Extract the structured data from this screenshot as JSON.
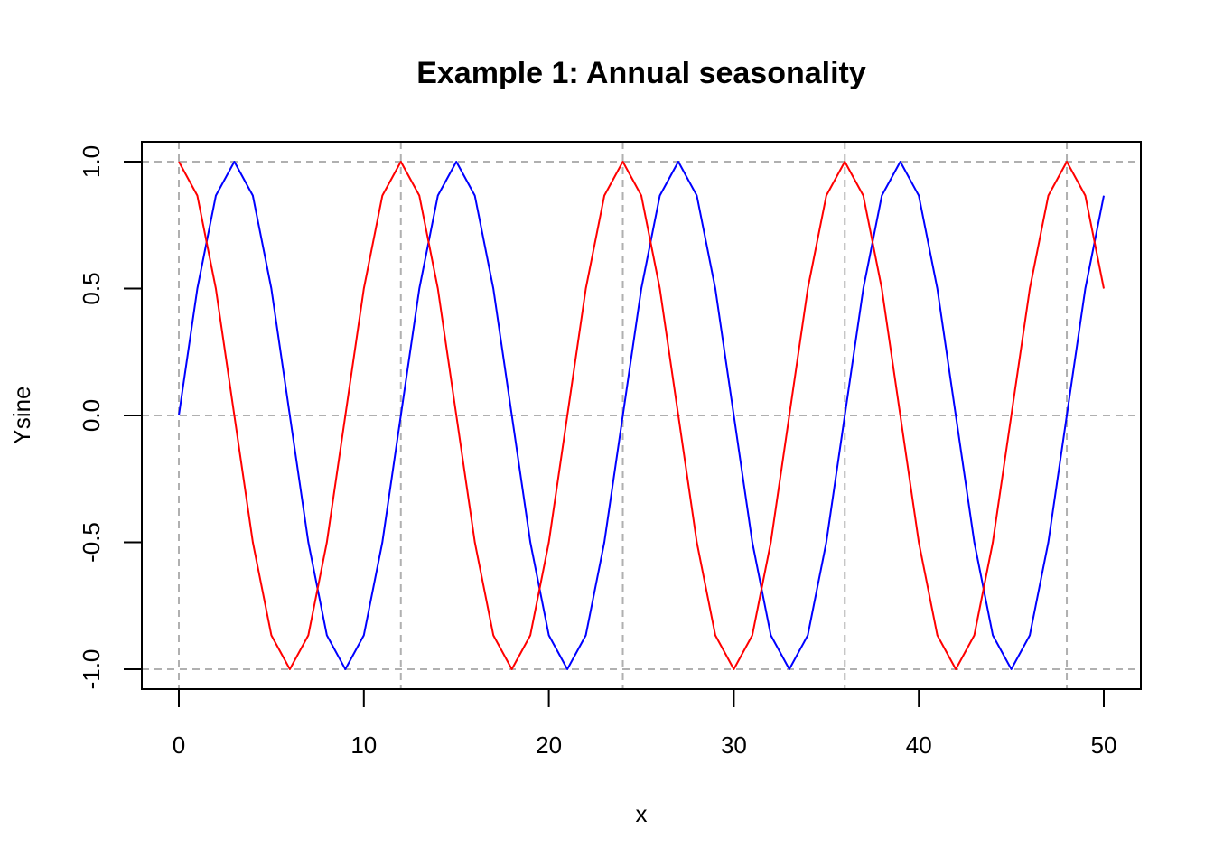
{
  "chart_data": {
    "type": "line",
    "title": "Example 1: Annual seasonality",
    "xlabel": "x",
    "ylabel": "Ysine",
    "xlim": [
      0,
      50
    ],
    "ylim": [
      -1,
      1
    ],
    "x_ticks": [
      0,
      10,
      20,
      30,
      40,
      50
    ],
    "x_tick_labels": [
      "0",
      "10",
      "20",
      "30",
      "40",
      "50"
    ],
    "y_ticks": [
      -1.0,
      -0.5,
      0.0,
      0.5,
      1.0
    ],
    "y_tick_labels": [
      "-1.0",
      "-0.5",
      "0.0",
      "0.5",
      "1.0"
    ],
    "grid": {
      "style": "dashed",
      "color": "#b0b0b0",
      "vertical_at_x": [
        0,
        12,
        24,
        36,
        48
      ],
      "horizontal_at_y": [
        -1,
        0,
        1
      ]
    },
    "x": [
      0,
      1,
      2,
      3,
      4,
      5,
      6,
      7,
      8,
      9,
      10,
      11,
      12,
      13,
      14,
      15,
      16,
      17,
      18,
      19,
      20,
      21,
      22,
      23,
      24,
      25,
      26,
      27,
      28,
      29,
      30,
      31,
      32,
      33,
      34,
      35,
      36,
      37,
      38,
      39,
      40,
      41,
      42,
      43,
      44,
      45,
      46,
      47,
      48,
      49,
      50
    ],
    "series": [
      {
        "color": "#0000ff",
        "values": [
          0,
          0.5,
          0.866,
          1,
          0.866,
          0.5,
          0,
          -0.5,
          -0.866,
          -1,
          -0.866,
          -0.5,
          0,
          0.5,
          0.866,
          1,
          0.866,
          0.5,
          0,
          -0.5,
          -0.866,
          -1,
          -0.866,
          -0.5,
          0,
          0.5,
          0.866,
          1,
          0.866,
          0.5,
          0,
          -0.5,
          -0.866,
          -1,
          -0.866,
          -0.5,
          0,
          0.5,
          0.866,
          1,
          0.866,
          0.5,
          0,
          -0.5,
          -0.866,
          -1,
          -0.866,
          -0.5,
          0,
          0.5,
          0.866
        ]
      },
      {
        "color": "#ff0000",
        "values": [
          1,
          0.866,
          0.5,
          0,
          -0.5,
          -0.866,
          -1,
          -0.866,
          -0.5,
          0,
          0.5,
          0.866,
          1,
          0.866,
          0.5,
          0,
          -0.5,
          -0.866,
          -1,
          -0.866,
          -0.5,
          0,
          0.5,
          0.866,
          1,
          0.866,
          0.5,
          0,
          -0.5,
          -0.866,
          -1,
          -0.866,
          -0.5,
          0,
          0.5,
          0.866,
          1,
          0.866,
          0.5,
          0,
          -0.5,
          -0.866,
          -1,
          -0.866,
          -0.5,
          0,
          0.5,
          0.866,
          1,
          0.866,
          0.5
        ]
      }
    ]
  }
}
